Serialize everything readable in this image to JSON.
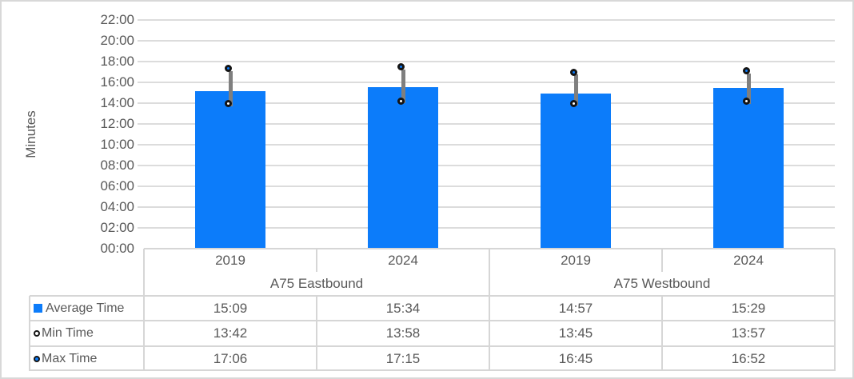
{
  "chart_data": {
    "type": "bar",
    "title": "",
    "ylabel": "Minutes",
    "grid": true,
    "legend_position": "table-left",
    "y_axis": {
      "min_minutes": 0,
      "max_minutes": 22,
      "step_minutes": 2,
      "tick_labels": [
        "22:00",
        "20:00",
        "18:00",
        "16:00",
        "14:00",
        "12:00",
        "10:00",
        "08:00",
        "06:00",
        "04:00",
        "02:00",
        "00:00"
      ]
    },
    "groups": [
      {
        "label": "A75 Eastbound",
        "categories": [
          "2019",
          "2024"
        ]
      },
      {
        "label": "A75 Westbound",
        "categories": [
          "2019",
          "2024"
        ]
      }
    ],
    "categories": [
      "2019",
      "2024",
      "2019",
      "2024"
    ],
    "series": [
      {
        "name": "Average Time",
        "style": "bar",
        "values": [
          "15:09",
          "15:34",
          "14:57",
          "15:29"
        ]
      },
      {
        "name": "Min Time",
        "style": "white-circle",
        "values": [
          "13:42",
          "13:58",
          "13:45",
          "13:57"
        ]
      },
      {
        "name": "Max Time",
        "style": "blue-circle",
        "values": [
          "17:06",
          "17:15",
          "16:45",
          "16:52"
        ]
      }
    ],
    "colors": {
      "bar": "#0c7cfa",
      "whisker": "#7f7f7f",
      "marker_border": "#141414",
      "min_marker_fill": "#ffffff",
      "max_marker_fill": "#0c7cfa",
      "gridline": "#dcdcdc",
      "table_border": "#d6d6d6",
      "text": "#595959"
    }
  }
}
